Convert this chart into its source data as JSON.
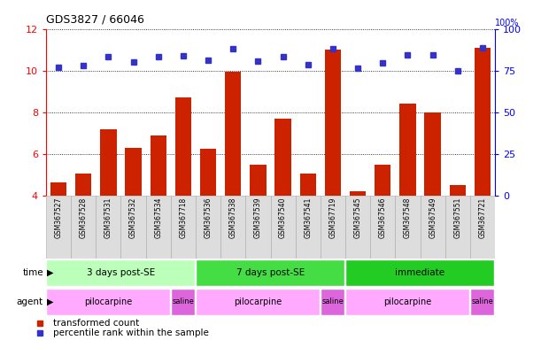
{
  "title": "GDS3827 / 66046",
  "samples": [
    "GSM367527",
    "GSM367528",
    "GSM367531",
    "GSM367532",
    "GSM367534",
    "GSM367718",
    "GSM367536",
    "GSM367538",
    "GSM367539",
    "GSM367540",
    "GSM367541",
    "GSM367719",
    "GSM367545",
    "GSM367546",
    "GSM367548",
    "GSM367549",
    "GSM367551",
    "GSM367721"
  ],
  "red_bars": [
    4.65,
    5.05,
    7.2,
    6.3,
    6.9,
    8.7,
    6.25,
    9.95,
    5.5,
    7.7,
    5.05,
    11.0,
    4.2,
    5.5,
    8.4,
    8.0,
    4.5,
    11.1
  ],
  "blue_dots": [
    76.9,
    78.1,
    83.1,
    80.0,
    83.1,
    83.8,
    81.3,
    88.1,
    80.6,
    83.1,
    78.8,
    88.1,
    76.3,
    79.4,
    84.4,
    84.4,
    75.0,
    88.8
  ],
  "ylim_left": [
    4,
    12
  ],
  "yticks_left": [
    4,
    6,
    8,
    10,
    12
  ],
  "ylim_right": [
    0,
    100
  ],
  "yticks_right": [
    0,
    25,
    50,
    75,
    100
  ],
  "bar_color": "#cc2200",
  "dot_color": "#3333cc",
  "time_groups": [
    {
      "label": "3 days post-SE",
      "start": 0,
      "end": 6,
      "color": "#bbffbb"
    },
    {
      "label": "7 days post-SE",
      "start": 6,
      "end": 12,
      "color": "#44dd44"
    },
    {
      "label": "immediate",
      "start": 12,
      "end": 18,
      "color": "#22cc22"
    }
  ],
  "agent_groups": [
    {
      "label": "pilocarpine",
      "start": 0,
      "end": 5,
      "color": "#ffaaff"
    },
    {
      "label": "saline",
      "start": 5,
      "end": 6,
      "color": "#dd66dd"
    },
    {
      "label": "pilocarpine",
      "start": 6,
      "end": 11,
      "color": "#ffaaff"
    },
    {
      "label": "saline",
      "start": 11,
      "end": 12,
      "color": "#dd66dd"
    },
    {
      "label": "pilocarpine",
      "start": 12,
      "end": 17,
      "color": "#ffaaff"
    },
    {
      "label": "saline",
      "start": 17,
      "end": 18,
      "color": "#dd66dd"
    }
  ],
  "legend_red": "transformed count",
  "legend_blue": "percentile rank within the sample"
}
